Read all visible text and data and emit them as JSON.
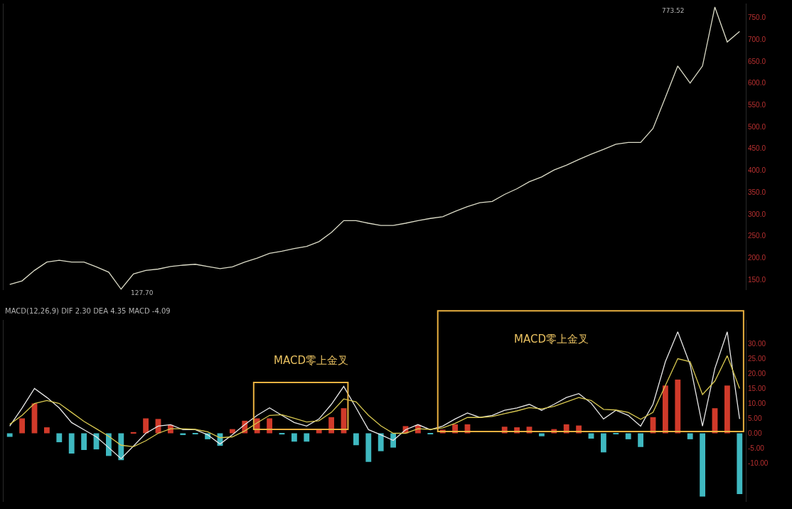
{
  "chart_data": [
    {
      "type": "line",
      "categories": [
        null,
        null,
        null,
        null,
        null,
        null,
        null,
        null,
        null,
        null,
        null,
        null,
        null,
        null,
        null,
        null,
        null,
        null,
        null,
        null,
        null,
        null,
        null,
        null,
        null,
        null,
        null,
        null,
        null,
        null,
        null,
        null,
        null,
        null,
        null,
        null,
        null,
        null,
        null,
        null,
        null,
        null,
        null,
        null,
        null,
        null,
        null,
        null,
        null,
        null,
        null,
        null,
        null,
        null,
        null,
        null,
        null,
        null,
        null,
        null
      ],
      "series": [
        {
          "color": "#dcdcc8",
          "values": [
            139,
            147,
            171,
            190,
            194,
            190,
            190,
            179,
            167,
            128,
            163,
            171,
            174,
            180,
            183,
            185,
            180,
            175,
            179,
            190,
            199,
            210,
            215,
            221,
            226,
            237,
            258,
            285,
            285,
            279,
            274,
            274,
            279,
            285,
            290,
            294,
            306,
            317,
            326,
            329,
            345,
            358,
            374,
            385,
            401,
            412,
            425,
            437,
            448,
            460,
            464,
            464,
            496,
            567,
            639,
            600,
            639,
            774,
            694,
            718
          ]
        }
      ],
      "ylim": [
        126,
        782
      ],
      "yticks": [
        {
          "value": 150,
          "label": "150.0"
        },
        {
          "value": 200,
          "label": "200.0"
        },
        {
          "value": 250,
          "label": "250.0"
        },
        {
          "value": 300,
          "label": "300.0"
        },
        {
          "value": 350,
          "label": "350.0"
        },
        {
          "value": 400,
          "label": "400.0"
        },
        {
          "value": 450,
          "label": "450.0"
        },
        {
          "value": 500,
          "label": "500.0"
        },
        {
          "value": 550,
          "label": "550.0"
        },
        {
          "value": 600,
          "label": "600.0"
        },
        {
          "value": 650,
          "label": "650.0"
        },
        {
          "value": 700,
          "label": "700.0"
        },
        {
          "value": 750,
          "label": "750.0"
        }
      ],
      "annotations": [
        "773.52",
        "127.70"
      ],
      "tick_labels": "y",
      "grid": false
    },
    {
      "type": "bar",
      "categories": [
        null,
        null,
        null,
        null,
        null,
        null,
        null,
        null,
        null,
        null,
        null,
        null,
        null,
        null,
        null,
        null,
        null,
        null,
        null,
        null,
        null,
        null,
        null,
        null,
        null,
        null,
        null,
        null,
        null,
        null,
        null,
        null,
        null,
        null,
        null,
        null,
        null,
        null,
        null,
        null,
        null,
        null,
        null,
        null,
        null,
        null,
        null,
        null,
        null,
        null,
        null,
        null,
        null,
        null,
        null,
        null,
        null,
        null,
        null,
        null
      ],
      "series": [
        {
          "colors": [
            "#3fb8c0",
            "#d03a2a",
            "#d03a2a",
            "#d03a2a",
            "#3fb8c0",
            "#3fb8c0",
            "#3fb8c0",
            "#3fb8c0",
            "#3fb8c0",
            "#3fb8c0",
            "#d03a2a",
            "#d03a2a",
            "#d03a2a",
            "#d03a2a",
            "#3fb8c0",
            "#3fb8c0",
            "#3fb8c0",
            "#3fb8c0",
            "#d03a2a",
            "#d03a2a",
            "#d03a2a",
            "#d03a2a",
            "#3fb8c0",
            "#3fb8c0",
            "#3fb8c0",
            "#d03a2a",
            "#d03a2a",
            "#d03a2a",
            "#3fb8c0",
            "#3fb8c0",
            "#3fb8c0",
            "#3fb8c0",
            "#d03a2a",
            "#d03a2a",
            "#3fb8c0",
            "#d03a2a",
            "#d03a2a",
            "#d03a2a",
            "#d03a2a",
            "#d03a2a",
            "#d03a2a",
            "#d03a2a",
            "#d03a2a",
            "#3fb8c0",
            "#d03a2a",
            "#d03a2a",
            "#d03a2a",
            "#3fb8c0",
            "#3fb8c0",
            "#3fb8c0",
            "#3fb8c0",
            "#3fb8c0",
            "#d03a2a",
            "#d03a2a",
            "#d03a2a",
            "#3fb8c0",
            "#3fb8c0",
            "#d03a2a",
            "#d03a2a",
            "#3fb8c0"
          ],
          "values": [
            -1.2,
            5,
            10,
            2,
            -3,
            -6.8,
            -5.6,
            -5.4,
            -7.6,
            -9,
            0.4,
            5,
            4.8,
            2.8,
            -0.6,
            -0.2,
            -2,
            -4.2,
            1.4,
            4.2,
            5,
            5,
            -0.4,
            -2.8,
            -2.8,
            1.2,
            5.4,
            8.4,
            -4,
            -9.6,
            -6,
            -4.8,
            2.4,
            2.8,
            -0.2,
            1.2,
            3,
            3,
            null,
            null,
            2.2,
            2,
            2.2,
            -1,
            1.4,
            3,
            2.6,
            -1.8,
            -6.4,
            -0.2,
            -2,
            -4.6,
            5.4,
            16,
            18,
            -2,
            -21.2,
            8.4,
            16,
            -20.4
          ]
        },
        {
          "type": "line",
          "color": "#e8e8e8",
          "values": [
            2.4,
            8.5,
            15,
            12,
            8.5,
            3.6,
            1.2,
            -1.2,
            -4.8,
            -8.5,
            -4.3,
            0,
            2.4,
            2.9,
            1.2,
            1.2,
            -0.5,
            -3.6,
            -0.5,
            2.9,
            6,
            8.5,
            6,
            3.6,
            2.4,
            4.8,
            9.7,
            15.7,
            8.5,
            1.2,
            -0.5,
            -2.4,
            1.2,
            2.9,
            1.2,
            2.4,
            4.8,
            6.8,
            5.3,
            6,
            7.7,
            8.5,
            9.7,
            7.7,
            9.7,
            12,
            13.3,
            10.1,
            4.8,
            7.7,
            6,
            2.4,
            9.7,
            24,
            34,
            23,
            2.4,
            21.7,
            34,
            4.8
          ]
        },
        {
          "type": "line",
          "color": "#d8c850",
          "values": [
            3,
            6,
            10,
            11,
            10,
            7,
            4,
            1.5,
            -1,
            -4,
            -4.5,
            -2.5,
            0,
            1.5,
            1.5,
            1.3,
            0.5,
            -1.5,
            -1.2,
            0.8,
            3.5,
            6,
            6.2,
            5,
            3.8,
            4.2,
            7,
            11.5,
            10.5,
            6,
            2.5,
            0,
            0,
            1.5,
            1.3,
            1.8,
            3.3,
            5.3,
            5.3,
            5.6,
            6.6,
            7.5,
            8.6,
            8.2,
            9,
            10.5,
            12,
            11,
            8,
            7.8,
            7,
            4.7,
            7,
            16,
            25,
            24,
            13,
            17.5,
            26,
            15
          ]
        }
      ],
      "ylim": [
        -23,
        38
      ],
      "yticks": [
        {
          "value": -10,
          "label": "-10.00"
        },
        {
          "value": -5,
          "label": "-5.00"
        },
        {
          "value": 0,
          "label": "0.00"
        },
        {
          "value": 5,
          "label": "5.00"
        },
        {
          "value": 10,
          "label": "10.00"
        },
        {
          "value": 15,
          "label": "15.00"
        },
        {
          "value": 20,
          "label": "20.00"
        },
        {
          "value": 25,
          "label": "25.00"
        },
        {
          "value": 30,
          "label": "30.00"
        }
      ],
      "annotations": [
        "MACD(12,26,9) DIF 2.30 DEA 4.35 MACD -4.09",
        "MACD零上金叉",
        "MACD零上金叉"
      ],
      "tick_labels": "y",
      "grid": false
    }
  ]
}
